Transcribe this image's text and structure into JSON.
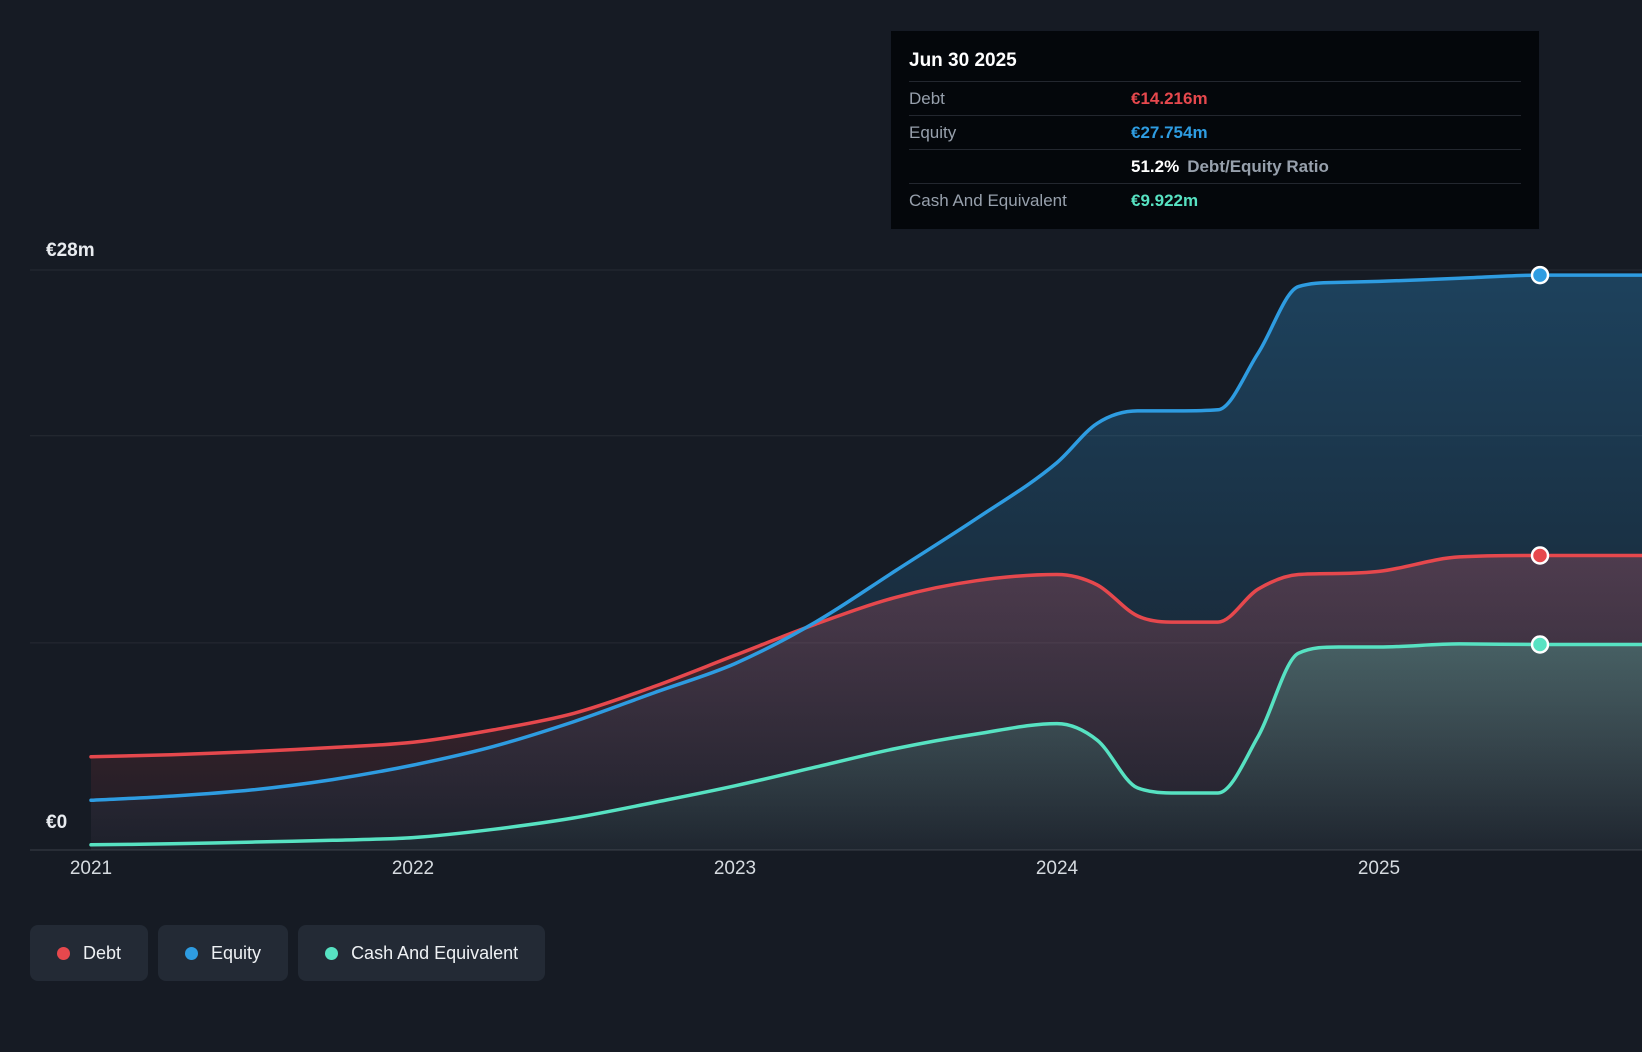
{
  "colors": {
    "background": "#161b24",
    "debt": "#e6484d",
    "equity": "#2e9ce1",
    "cash": "#57e2c2"
  },
  "y_axis": {
    "top_label": "€28m",
    "bottom_label": "€0"
  },
  "x_axis": {
    "ticks": [
      "2021",
      "2022",
      "2023",
      "2024",
      "2025"
    ]
  },
  "tooltip": {
    "title": "Jun 30 2025",
    "debt_label": "Debt",
    "debt_value": "€14.216m",
    "equity_label": "Equity",
    "equity_value": "€27.754m",
    "ratio_value": "51.2%",
    "ratio_label": "Debt/Equity Ratio",
    "cash_label": "Cash And Equivalent",
    "cash_value": "€9.922m"
  },
  "legend": {
    "debt": "Debt",
    "equity": "Equity",
    "cash": "Cash And Equivalent"
  },
  "chart_data": {
    "type": "area",
    "ylim": [
      0,
      28
    ],
    "grid_values": [
      28,
      20,
      10,
      0
    ],
    "x_tick_years": [
      2021,
      2022,
      2023,
      2024,
      2025
    ],
    "x_end": 2025.5,
    "x": [
      2021.0,
      2021.25,
      2021.5,
      2021.75,
      2022.0,
      2022.25,
      2022.5,
      2022.75,
      2023.0,
      2023.25,
      2023.5,
      2023.75,
      2024.0,
      2024.125,
      2024.25,
      2024.375,
      2024.5,
      2024.625,
      2024.75,
      2024.875,
      2025.0,
      2025.25,
      2025.5
    ],
    "series": [
      {
        "name": "Debt",
        "color_key": "debt",
        "values": [
          4.5,
          4.6,
          4.75,
          4.95,
          5.2,
          5.8,
          6.6,
          7.9,
          9.4,
          10.9,
          12.2,
          13.0,
          13.3,
          12.8,
          11.3,
          11.0,
          11.0,
          12.6,
          13.3,
          13.35,
          13.45,
          14.15,
          14.216
        ]
      },
      {
        "name": "Equity",
        "color_key": "equity",
        "values": [
          2.4,
          2.6,
          2.9,
          3.4,
          4.1,
          5.0,
          6.2,
          7.6,
          9.0,
          11.0,
          13.5,
          16.0,
          18.7,
          20.6,
          21.2,
          21.2,
          21.25,
          24.0,
          27.2,
          27.4,
          27.45,
          27.6,
          27.754
        ]
      },
      {
        "name": "Cash And Equivalent",
        "color_key": "cash",
        "values": [
          0.25,
          0.3,
          0.38,
          0.47,
          0.6,
          1.0,
          1.55,
          2.3,
          3.1,
          4.0,
          4.9,
          5.6,
          6.1,
          5.3,
          3.0,
          2.75,
          2.75,
          5.5,
          9.5,
          9.8,
          9.8,
          9.95,
          9.922
        ]
      }
    ]
  }
}
